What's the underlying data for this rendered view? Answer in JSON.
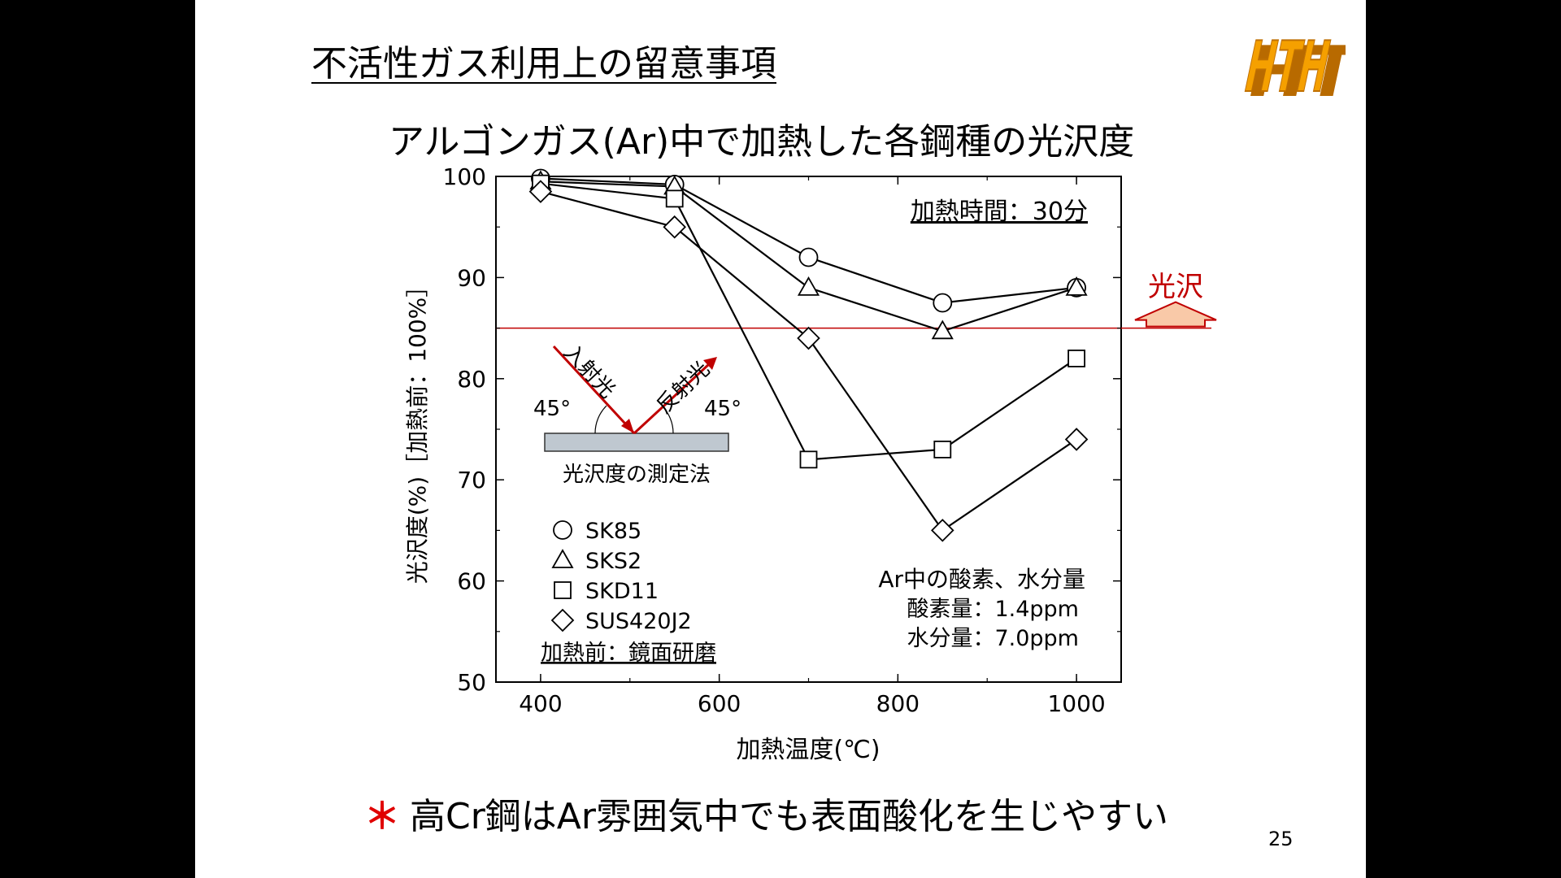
{
  "slide": {
    "heading": "不活性ガス利用上の留意事項",
    "logo_text": "HTH",
    "chart_title": "アルゴンガス(Ar)中で加熱した各鋼種の光沢度",
    "footnote_star": "＊",
    "footnote": "高Cr鋼はAr雰囲気中でも表面酸化を生じやすい",
    "page_number": "25"
  },
  "colors": {
    "accent": "#c00000",
    "logo_orange": "#f5a000",
    "footnote_star": "#e00000"
  },
  "annotations": {
    "heating_time": "加熱時間：30分",
    "gloss_label": "光沢",
    "incident": "入射光",
    "reflected": "反射光",
    "angle_left": "45°",
    "angle_right": "45°",
    "method": "光沢度の測定法",
    "before_heating": "加熱前：鏡面研磨",
    "ar_header": "Ar中の酸素、水分量",
    "oxygen": "酸素量：1.4ppm",
    "water": "水分量：7.0ppm"
  },
  "chart_data": {
    "type": "line",
    "xlabel": "加熱温度(℃)",
    "ylabel": "光沢度(%)［加熱前：100%］",
    "xlim": [
      350,
      1050
    ],
    "ylim": [
      50,
      100
    ],
    "xticks": [
      400,
      600,
      800,
      1000
    ],
    "yticks": [
      50,
      60,
      70,
      80,
      90,
      100
    ],
    "threshold": 85,
    "grid": false,
    "legend_position": "bottom-left",
    "series": [
      {
        "name": "SK85",
        "marker": "circle",
        "x": [
          400,
          550,
          700,
          850,
          1000
        ],
        "y": [
          99.8,
          99.2,
          92,
          87.5,
          89
        ]
      },
      {
        "name": "SKS2",
        "marker": "triangle",
        "x": [
          400,
          550,
          700,
          850,
          1000
        ],
        "y": [
          99.5,
          99,
          89,
          84.7,
          89
        ]
      },
      {
        "name": "SKD11",
        "marker": "square",
        "x": [
          400,
          550,
          700,
          850,
          1000
        ],
        "y": [
          99.3,
          97.8,
          72,
          73,
          82
        ]
      },
      {
        "name": "SUS420J2",
        "marker": "diamond",
        "x": [
          400,
          550,
          700,
          850,
          1000
        ],
        "y": [
          98.5,
          95,
          84,
          65,
          74
        ]
      }
    ]
  }
}
